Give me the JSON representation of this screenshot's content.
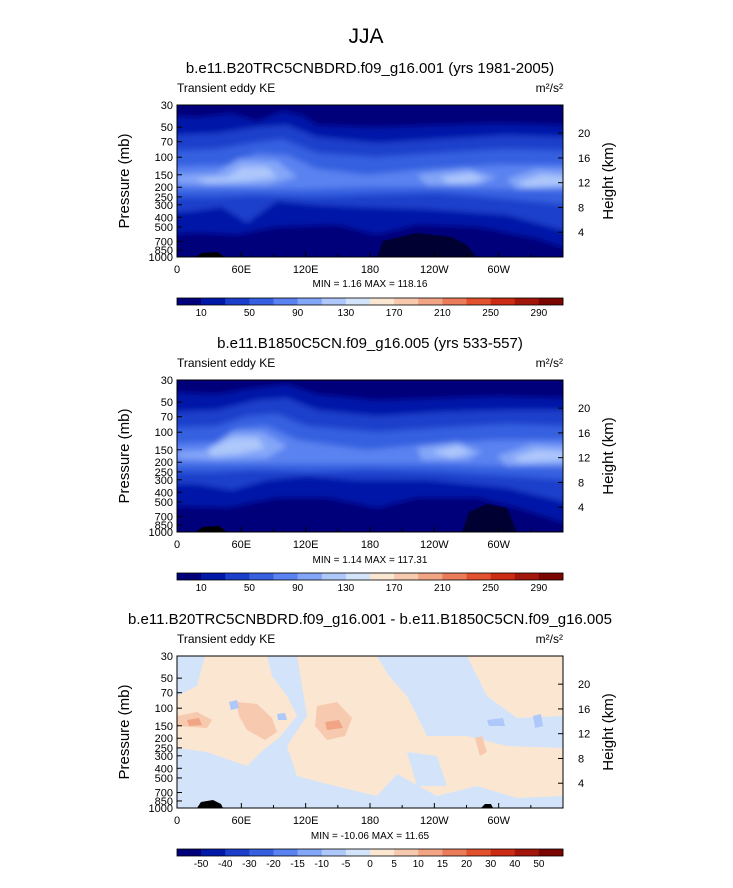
{
  "figure_title": "JJA",
  "colors": {
    "background": "#ffffff",
    "axis": "#000000",
    "land": "#000000"
  },
  "chart_data": [
    {
      "type": "heatmap",
      "title": "b.e11.B20TRC5CNBDRD.f09_g16.001 (yrs 1981-2005)",
      "left_label": "Transient eddy KE",
      "units_label": "m²/s²",
      "ylabel": "Pressure (mb)",
      "y2label": "Height (km)",
      "x_ticks": [
        "0",
        "60E",
        "120E",
        "180",
        "120W",
        "60W"
      ],
      "y_ticks": [
        "30",
        "50",
        "70",
        "100",
        "150",
        "200",
        "250",
        "300",
        "400",
        "500",
        "700",
        "850",
        "1000"
      ],
      "y2_ticks": [
        "20",
        "16",
        "12",
        "8",
        "4"
      ],
      "minmax_label": "MIN =   1.16  MAX = 118.16",
      "colorbar_labels": [
        "10",
        "50",
        "90",
        "130",
        "170",
        "210",
        "250",
        "290"
      ],
      "colorbar_colors": [
        "#00007a",
        "#0018a8",
        "#1c3fcb",
        "#3660e0",
        "#5a82f0",
        "#84a6f8",
        "#aec8fb",
        "#d3e4fa",
        "#fbe6d2",
        "#f7c9ae",
        "#f2a585",
        "#ea7c5a",
        "#e1512d",
        "#cc2c14",
        "#a3160b",
        "#7b0600"
      ],
      "colorbar_style": "tick-labels"
    },
    {
      "type": "heatmap",
      "title": "b.e11.B1850C5CN.f09_g16.005 (yrs 533-557)",
      "left_label": "Transient eddy KE",
      "units_label": "m²/s²",
      "ylabel": "Pressure (mb)",
      "y2label": "Height (km)",
      "x_ticks": [
        "0",
        "60E",
        "120E",
        "180",
        "120W",
        "60W"
      ],
      "y_ticks": [
        "30",
        "50",
        "70",
        "100",
        "150",
        "200",
        "250",
        "300",
        "400",
        "500",
        "700",
        "850",
        "1000"
      ],
      "y2_ticks": [
        "20",
        "16",
        "12",
        "8",
        "4"
      ],
      "minmax_label": "MIN =   1.14  MAX = 117.31",
      "colorbar_labels": [
        "10",
        "50",
        "90",
        "130",
        "170",
        "210",
        "250",
        "290"
      ],
      "colorbar_colors": [
        "#00007a",
        "#0018a8",
        "#1c3fcb",
        "#3660e0",
        "#5a82f0",
        "#84a6f8",
        "#aec8fb",
        "#d3e4fa",
        "#fbe6d2",
        "#f7c9ae",
        "#f2a585",
        "#ea7c5a",
        "#e1512d",
        "#cc2c14",
        "#a3160b",
        "#7b0600"
      ],
      "colorbar_style": "tick-labels"
    },
    {
      "type": "heatmap",
      "title": "b.e11.B20TRC5CNBDRD.f09_g16.001 - b.e11.B1850C5CN.f09_g16.005",
      "left_label": "Transient eddy KE",
      "units_label": "m²/s²",
      "ylabel": "Pressure (mb)",
      "y2label": "Height (km)",
      "x_ticks": [
        "0",
        "60E",
        "120E",
        "180",
        "120W",
        "60W"
      ],
      "y_ticks": [
        "30",
        "50",
        "70",
        "100",
        "150",
        "200",
        "250",
        "300",
        "400",
        "500",
        "700",
        "850",
        "1000"
      ],
      "y2_ticks": [
        "20",
        "16",
        "12",
        "8",
        "4"
      ],
      "minmax_label": "MIN = -10.06  MAX =  11.65",
      "colorbar_labels": [
        "-50",
        "-40",
        "-30",
        "-20",
        "-15",
        "-10",
        "-5",
        "0",
        "5",
        "10",
        "15",
        "20",
        "30",
        "40",
        "50"
      ],
      "colorbar_colors": [
        "#00007a",
        "#0018a8",
        "#1c3fcb",
        "#3660e0",
        "#5a82f0",
        "#84a6f8",
        "#aec8fb",
        "#d3e4fa",
        "#fbe6d2",
        "#f7c9ae",
        "#f2a585",
        "#ea7c5a",
        "#e1512d",
        "#cc2c14",
        "#a3160b",
        "#7b0600"
      ],
      "colorbar_style": "boundary-labels"
    }
  ]
}
